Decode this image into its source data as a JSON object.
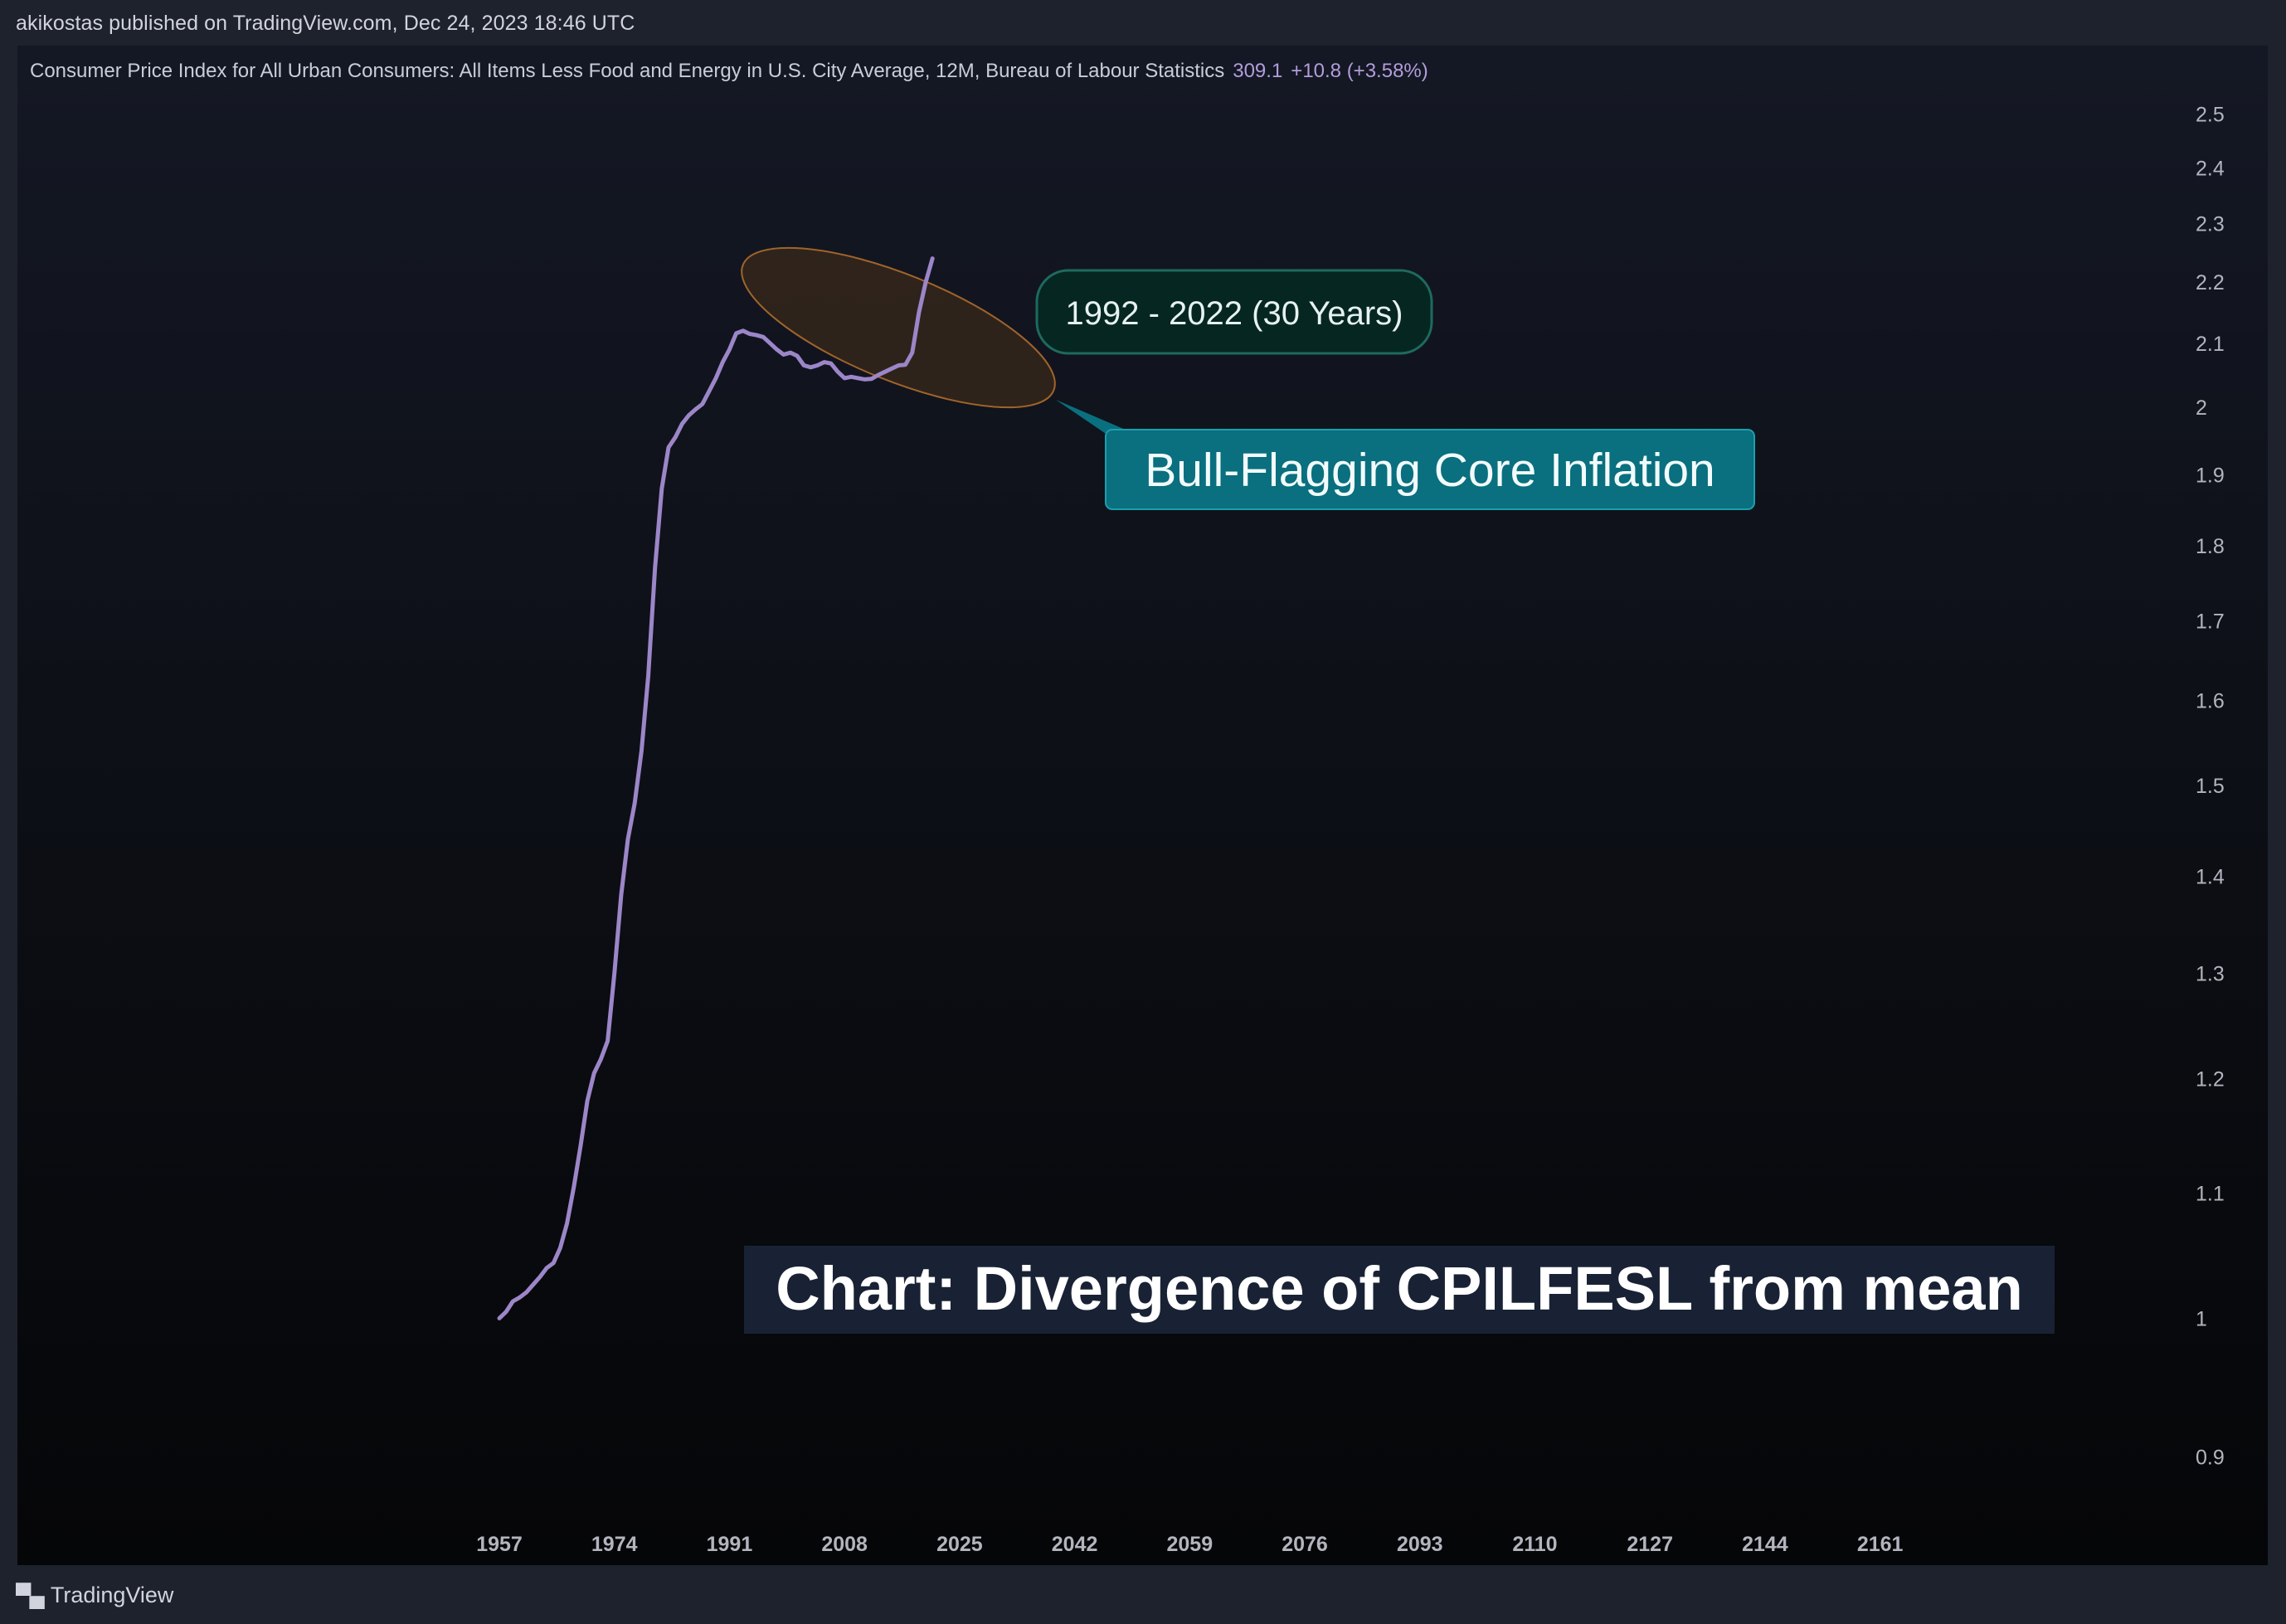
{
  "header": {
    "published": "akikostas published on TradingView.com, Dec 24, 2023 18:46 UTC"
  },
  "legend": {
    "series": "Consumer Price Index for All Urban Consumers: All Items Less Food and Energy in U.S. City Average, 12M, Bureau of Labour Statistics",
    "last": "309.1",
    "change": "+10.8 (+3.58%)"
  },
  "footer": {
    "brand": "TradingView",
    "logo_icon": "tradingview-logo-icon"
  },
  "colors": {
    "line": "#9c86c8",
    "ellipse_fill": "#3a2a1a",
    "ellipse_stroke": "#a0642a",
    "note_fill": "#062622",
    "note_stroke": "#1d6a5e",
    "callout_fill": "#0a6f7e",
    "title_bg": "#1b2538"
  },
  "chart_data": {
    "type": "line",
    "scale": "log",
    "ylim": [
      0.88,
      2.56
    ],
    "xlim": [
      1889.9,
      2192
    ],
    "x_ticks": [
      "1957",
      "1974",
      "1991",
      "2008",
      "2025",
      "2042",
      "2059",
      "2076",
      "2093",
      "2110",
      "2127",
      "2144",
      "2161"
    ],
    "y_ticks": [
      "0.9",
      "1",
      "1.1",
      "1.2",
      "1.3",
      "1.4",
      "1.5",
      "1.6",
      "1.7",
      "1.8",
      "1.9",
      "2",
      "2.1",
      "2.2",
      "2.3",
      "2.4",
      "2.5"
    ],
    "series": [
      {
        "points": [
          [
            1957.0,
            1.0
          ],
          [
            1958.0,
            1.005
          ],
          [
            1959.0,
            1.013
          ],
          [
            1960.0,
            1.016
          ],
          [
            1961.0,
            1.02
          ],
          [
            1962.0,
            1.026
          ],
          [
            1963.0,
            1.032
          ],
          [
            1964.0,
            1.039
          ],
          [
            1965.0,
            1.043
          ],
          [
            1966.0,
            1.055
          ],
          [
            1967.0,
            1.075
          ],
          [
            1968.0,
            1.105
          ],
          [
            1969.0,
            1.14
          ],
          [
            1970.0,
            1.18
          ],
          [
            1971.0,
            1.205
          ],
          [
            1972.0,
            1.218
          ],
          [
            1973.0,
            1.235
          ],
          [
            1974.0,
            1.3
          ],
          [
            1975.0,
            1.38
          ],
          [
            1976.0,
            1.44
          ],
          [
            1977.0,
            1.48
          ],
          [
            1978.0,
            1.54
          ],
          [
            1979.0,
            1.63
          ],
          [
            1980.0,
            1.77
          ],
          [
            1981.0,
            1.88
          ],
          [
            1982.0,
            1.94
          ],
          [
            1983.0,
            1.955
          ],
          [
            1984.0,
            1.975
          ],
          [
            1985.0,
            1.988
          ],
          [
            1986.0,
            1.997
          ],
          [
            1987.0,
            2.005
          ],
          [
            1988.0,
            2.025
          ],
          [
            1989.0,
            2.045
          ],
          [
            1990.0,
            2.07
          ],
          [
            1991.0,
            2.09
          ],
          [
            1992.0,
            2.116
          ],
          [
            1993.0,
            2.12
          ],
          [
            1994.0,
            2.115
          ],
          [
            1995.0,
            2.113
          ],
          [
            1996.0,
            2.11
          ],
          [
            1997.0,
            2.1
          ],
          [
            1998.0,
            2.09
          ],
          [
            1999.0,
            2.082
          ],
          [
            2000.0,
            2.085
          ],
          [
            2001.0,
            2.08
          ],
          [
            2002.0,
            2.065
          ],
          [
            2003.0,
            2.062
          ],
          [
            2004.0,
            2.065
          ],
          [
            2005.0,
            2.07
          ],
          [
            2006.0,
            2.068
          ],
          [
            2007.0,
            2.055
          ],
          [
            2008.0,
            2.045
          ],
          [
            2009.0,
            2.047
          ],
          [
            2010.0,
            2.045
          ],
          [
            2011.0,
            2.043
          ],
          [
            2012.0,
            2.044
          ],
          [
            2013.0,
            2.05
          ],
          [
            2014.0,
            2.055
          ],
          [
            2015.0,
            2.06
          ],
          [
            2016.0,
            2.065
          ],
          [
            2017.0,
            2.066
          ],
          [
            2018.0,
            2.085
          ],
          [
            2019.0,
            2.15
          ],
          [
            2020.0,
            2.2
          ],
          [
            2021.0,
            2.24
          ]
        ]
      }
    ],
    "annotations": {
      "note": "1992 - 2022 (30 Years)",
      "callout": "Bull-Flagging Core Inflation",
      "title": "Chart: Divergence of CPILFESL from mean"
    }
  }
}
